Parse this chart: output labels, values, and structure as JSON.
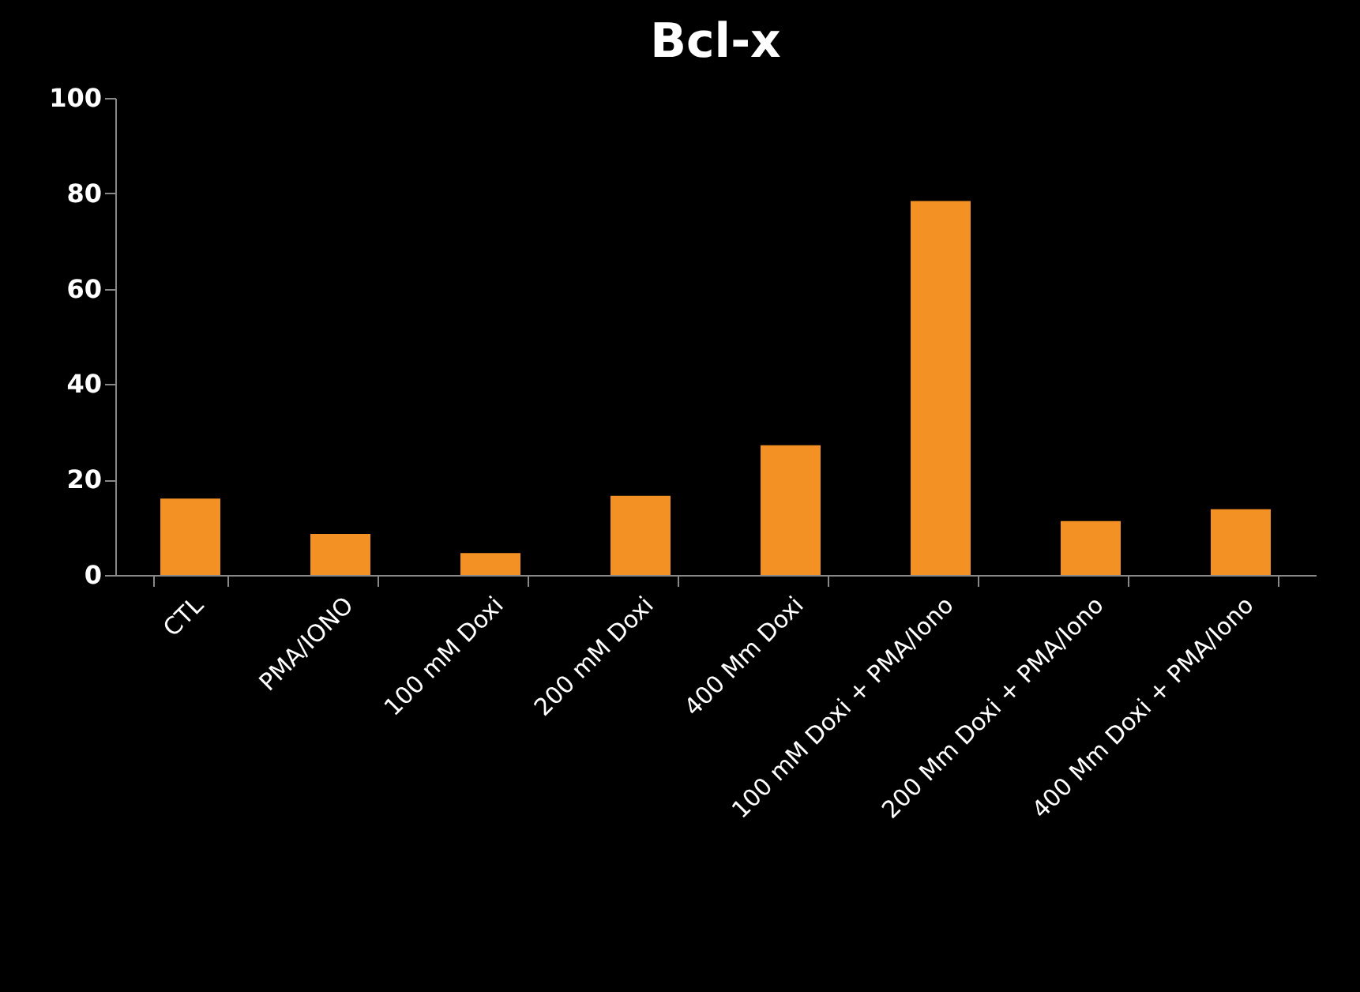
{
  "chart_data": {
    "type": "bar",
    "title": "Bcl-x",
    "categories": [
      "CTL",
      "PMA/IONO",
      "100 mM Doxi",
      "200 mM Doxi",
      "400 Mm Doxi",
      "100 mM Doxi + PMA/Iono",
      "200 Mm Doxi + PMA/Iono",
      "400 Mm Doxi + PMA/Iono"
    ],
    "values": [
      16,
      8.6,
      4.6,
      16.6,
      27.2,
      78.4,
      11.3,
      13.8
    ],
    "color": "#f39125",
    "ylim": [
      0,
      100
    ],
    "yticks": [
      0,
      20,
      40,
      60,
      80,
      100
    ],
    "grid": false,
    "legend": false
  }
}
